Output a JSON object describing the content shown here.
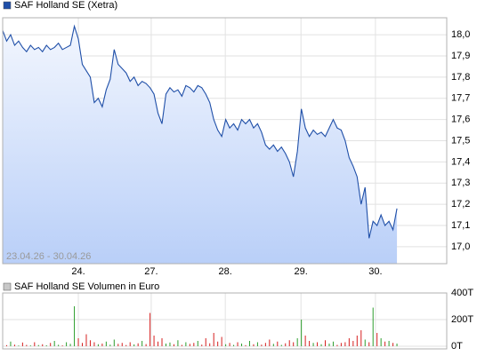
{
  "chart_data": [
    {
      "type": "line",
      "title": "SAF Holland SE (Xetra)",
      "annotation": "23.04.26 - 30.04.26",
      "color": "#1f4fa8",
      "fill_top": "#f2f6fe",
      "fill_bottom": "#b9cff8",
      "x": [
        0,
        1,
        2,
        3,
        4,
        5,
        6,
        7,
        8,
        9,
        10,
        11,
        12,
        13,
        14,
        15,
        16,
        17,
        18,
        19,
        20,
        21,
        22,
        23,
        24,
        25,
        26,
        27,
        28,
        29,
        30,
        31,
        32,
        33,
        34,
        35,
        36,
        37,
        38,
        39,
        40,
        41,
        42,
        43,
        44,
        45,
        46,
        47,
        48,
        49,
        50,
        51,
        52,
        53,
        54,
        55,
        56,
        57,
        58,
        59,
        60,
        61,
        62,
        63,
        64,
        65,
        66,
        67,
        68,
        69,
        70,
        71,
        72,
        73,
        74,
        75,
        76,
        77,
        78,
        79,
        80,
        81,
        82,
        83,
        84,
        85,
        86,
        87,
        88,
        89,
        90,
        91,
        92,
        93,
        94,
        95,
        96,
        97,
        98,
        99
      ],
      "values": [
        18.02,
        17.97,
        18.0,
        17.95,
        17.97,
        17.94,
        17.92,
        17.95,
        17.93,
        17.94,
        17.92,
        17.95,
        17.93,
        17.94,
        17.96,
        17.93,
        17.94,
        17.95,
        18.04,
        17.98,
        17.86,
        17.83,
        17.8,
        17.68,
        17.7,
        17.66,
        17.74,
        17.79,
        17.93,
        17.86,
        17.84,
        17.82,
        17.78,
        17.8,
        17.76,
        17.78,
        17.77,
        17.75,
        17.72,
        17.63,
        17.58,
        17.72,
        17.75,
        17.73,
        17.74,
        17.71,
        17.76,
        17.75,
        17.73,
        17.76,
        17.75,
        17.72,
        17.68,
        17.6,
        17.55,
        17.52,
        17.6,
        17.56,
        17.58,
        17.55,
        17.6,
        17.58,
        17.6,
        17.56,
        17.58,
        17.54,
        17.48,
        17.46,
        17.48,
        17.45,
        17.47,
        17.44,
        17.4,
        17.33,
        17.45,
        17.65,
        17.56,
        17.52,
        17.55,
        17.53,
        17.54,
        17.52,
        17.56,
        17.6,
        17.56,
        17.55,
        17.5,
        17.42,
        17.38,
        17.33,
        17.2,
        17.28,
        17.04,
        17.12,
        17.1,
        17.15,
        17.1,
        17.12,
        17.08,
        17.18
      ],
      "xlim": [
        0,
        111.5
      ],
      "xticks": [
        {
          "value": 19,
          "label": "24."
        },
        {
          "value": 37.3,
          "label": "27."
        },
        {
          "value": 55.9,
          "label": "28."
        },
        {
          "value": 74.9,
          "label": "29."
        },
        {
          "value": 93.6,
          "label": "30."
        }
      ],
      "ylim": [
        16.92,
        18.08
      ],
      "yticks": [
        {
          "value": 17.0,
          "label": "17,0"
        },
        {
          "value": 17.1,
          "label": "17,1"
        },
        {
          "value": 17.2,
          "label": "17,2"
        },
        {
          "value": 17.3,
          "label": "17,3"
        },
        {
          "value": 17.4,
          "label": "17,4"
        },
        {
          "value": 17.5,
          "label": "17,5"
        },
        {
          "value": 17.6,
          "label": "17,6"
        },
        {
          "value": 17.7,
          "label": "17,7"
        },
        {
          "value": 17.8,
          "label": "17,8"
        },
        {
          "value": 17.9,
          "label": "17,9"
        },
        {
          "value": 18.0,
          "label": "18,0"
        }
      ],
      "grid": true
    },
    {
      "type": "bar",
      "title": "SAF Holland SE Volumen in Euro",
      "color": "#c8c8c8",
      "up_color": "#2e9e2e",
      "down_color": "#d62020",
      "x": [
        0,
        1,
        2,
        3,
        4,
        5,
        6,
        7,
        8,
        9,
        10,
        11,
        12,
        13,
        14,
        15,
        16,
        17,
        18,
        19,
        20,
        21,
        22,
        23,
        24,
        25,
        26,
        27,
        28,
        29,
        30,
        31,
        32,
        33,
        34,
        35,
        36,
        37,
        38,
        39,
        40,
        41,
        42,
        43,
        44,
        45,
        46,
        47,
        48,
        49,
        50,
        51,
        52,
        53,
        54,
        55,
        56,
        57,
        58,
        59,
        60,
        61,
        62,
        63,
        64,
        65,
        66,
        67,
        68,
        69,
        70,
        71,
        72,
        73,
        74,
        75,
        76,
        77,
        78,
        79,
        80,
        81,
        82,
        83,
        84,
        85,
        86,
        87,
        88,
        89,
        90,
        91,
        92,
        93,
        94,
        95,
        96,
        97,
        98,
        99
      ],
      "values": [
        20000,
        8000,
        35000,
        12000,
        5000,
        28000,
        10000,
        6000,
        30000,
        9000,
        15000,
        7000,
        25000,
        40000,
        11000,
        6000,
        30000,
        18000,
        300000,
        60000,
        25000,
        90000,
        45000,
        30000,
        15000,
        20000,
        35000,
        12000,
        50000,
        18000,
        25000,
        9000,
        30000,
        14000,
        22000,
        40000,
        16000,
        250000,
        80000,
        35000,
        60000,
        20000,
        28000,
        15000,
        45000,
        10000,
        30000,
        18000,
        25000,
        40000,
        12000,
        60000,
        22000,
        100000,
        35000,
        70000,
        15000,
        25000,
        10000,
        30000,
        20000,
        8000,
        40000,
        15000,
        30000,
        12000,
        25000,
        50000,
        18000,
        35000,
        10000,
        22000,
        45000,
        30000,
        60000,
        200000,
        80000,
        40000,
        25000,
        30000,
        15000,
        45000,
        20000,
        35000,
        10000,
        25000,
        30000,
        60000,
        40000,
        80000,
        120000,
        50000,
        30000,
        290000,
        100000,
        60000,
        35000,
        40000,
        25000,
        20000
      ],
      "xlim": [
        0,
        111.5
      ],
      "xticks": [
        19,
        37.3,
        55.9,
        74.9,
        93.6
      ],
      "ylim": [
        0,
        400000
      ],
      "yticks": [
        {
          "value": 0,
          "label": "0T"
        },
        {
          "value": 200000,
          "label": "200T"
        },
        {
          "value": 400000,
          "label": "400T"
        }
      ],
      "grid": true
    }
  ]
}
